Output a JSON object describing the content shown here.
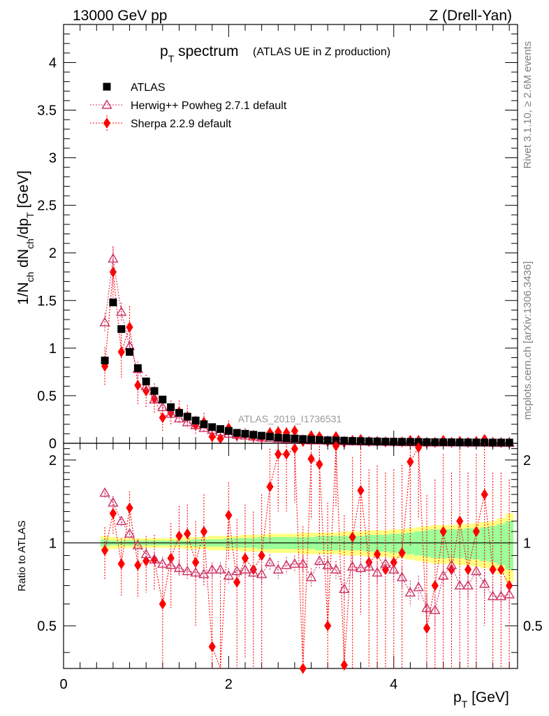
{
  "header": {
    "left": "13000 GeV pp",
    "right": "Z (Drell-Yan)"
  },
  "side": {
    "rivet": "Rivet 3.1.10, ≥ 2.6M events",
    "mcplots": "mcplots.cern.ch [arXiv:1306.3436]"
  },
  "colors": {
    "atlas": "#000000",
    "herwig": "#cc3366",
    "sherpa": "#ff0000",
    "band_stat": "#99ff99",
    "band_total": "#ffff80"
  },
  "chart_data": [
    {
      "type": "scatter",
      "panel": "main",
      "title_main": "p",
      "title_sub": "T",
      "title_rest": " spectrum",
      "subtitle": "(ATLAS UE in Z production)",
      "watermark": "ATLAS_2019_I1736531",
      "ylabel": "1/N_ch dN_ch/dp_T [GeV]",
      "ylim": [
        0,
        4.4
      ],
      "yticks": [
        "0",
        "0.5",
        "1",
        "1.5",
        "2",
        "2.5",
        "3",
        "3.5",
        "4"
      ],
      "ytick_values": [
        0,
        0.5,
        1,
        1.5,
        2,
        2.5,
        3,
        3.5,
        4
      ],
      "xlim": [
        0,
        5.5
      ],
      "legend": {
        "position": "top-left",
        "entries": [
          "ATLAS",
          "Herwig++ Powheg 2.7.1 default",
          "Sherpa 2.2.9 default"
        ]
      },
      "x": [
        0.5,
        0.6,
        0.7,
        0.8,
        0.9,
        1.0,
        1.1,
        1.2,
        1.3,
        1.4,
        1.5,
        1.6,
        1.7,
        1.8,
        1.9,
        2.0,
        2.1,
        2.2,
        2.3,
        2.4,
        2.5,
        2.6,
        2.7,
        2.8,
        2.9,
        3.0,
        3.1,
        3.2,
        3.3,
        3.4,
        3.5,
        3.6,
        3.7,
        3.8,
        3.9,
        4.0,
        4.1,
        4.2,
        4.3,
        4.4,
        4.5,
        4.6,
        4.7,
        4.8,
        4.9,
        5.0,
        5.1,
        5.2,
        5.3,
        5.4
      ],
      "series": [
        {
          "name": "ATLAS",
          "values": [
            0.87,
            1.48,
            1.2,
            0.96,
            0.79,
            0.65,
            0.55,
            0.46,
            0.38,
            0.32,
            0.28,
            0.24,
            0.2,
            0.17,
            0.15,
            0.13,
            0.11,
            0.1,
            0.09,
            0.08,
            0.07,
            0.06,
            0.055,
            0.05,
            0.045,
            0.04,
            0.035,
            0.032,
            0.03,
            0.028,
            0.025,
            0.023,
            0.021,
            0.02,
            0.018,
            0.017,
            0.016,
            0.015,
            0.014,
            0.013,
            0.012,
            0.011,
            0.011,
            0.01,
            0.01,
            0.009,
            0.009,
            0.008,
            0.008,
            0.008
          ]
        },
        {
          "name": "Herwig++ Powheg 2.7.1 default",
          "values": [
            1.27,
            1.94,
            1.38,
            1.02,
            0.78,
            0.6,
            0.46,
            0.38,
            0.31,
            0.26,
            0.22,
            0.19,
            0.16,
            0.14,
            0.12,
            0.1,
            0.09,
            0.08,
            0.07,
            0.06,
            0.055,
            0.05,
            0.045,
            0.04,
            0.037,
            0.03,
            0.03,
            0.027,
            0.025,
            0.022,
            0.02,
            0.019,
            0.017,
            0.016,
            0.015,
            0.014,
            0.012,
            0.011,
            0.01,
            0.008,
            0.008,
            0.009,
            0.009,
            0.008,
            0.007,
            0.007,
            0.007,
            0.006,
            0.005,
            0.005
          ],
          "errors": [
            0.1,
            0.12,
            0.1,
            0.09,
            0.08,
            0.07,
            0.06,
            0.05,
            0.05,
            0.04,
            0.04,
            0.04,
            0.04,
            0.03,
            0.03,
            0.03,
            0.03,
            0.03,
            0.03,
            0.03,
            0.03,
            0.03,
            0.03,
            0.03,
            0.03,
            0.03,
            0.03,
            0.03,
            0.03,
            0.03,
            0.03,
            0.03,
            0.03,
            0.02,
            0.02,
            0.02,
            0.02,
            0.02,
            0.02,
            0.02,
            0.02,
            0.02,
            0.02,
            0.02,
            0.02,
            0.02,
            0.02,
            0.02,
            0.02,
            0.02
          ]
        },
        {
          "name": "Sherpa 2.2.9 default",
          "values": [
            0.81,
            1.8,
            0.96,
            1.22,
            0.61,
            0.55,
            0.47,
            0.27,
            0.32,
            0.33,
            0.28,
            0.19,
            0.22,
            0.07,
            0.05,
            0.16,
            0.08,
            0.09,
            0.07,
            0.06,
            0.11,
            0.12,
            0.11,
            0.13,
            0.02,
            0.08,
            0.07,
            0.02,
            0.07,
            0.01,
            0.03,
            0.04,
            0.02,
            0.02,
            0.015,
            0.015,
            0.015,
            0.03,
            0.03,
            0.006,
            0.01,
            0.03,
            0.01,
            0.02,
            0.01,
            0.02,
            0.04,
            0.008,
            0.008,
            0.005
          ],
          "errors": [
            0.2,
            0.27,
            0.27,
            0.22,
            0.2,
            0.17,
            0.16,
            0.14,
            0.13,
            0.12,
            0.12,
            0.1,
            0.1,
            0.09,
            0.08,
            0.08,
            0.07,
            0.07,
            0.07,
            0.06,
            0.06,
            0.06,
            0.06,
            0.06,
            0.05,
            0.05,
            0.05,
            0.05,
            0.05,
            0.05,
            0.05,
            0.05,
            0.04,
            0.04,
            0.04,
            0.04,
            0.04,
            0.04,
            0.04,
            0.04,
            0.03,
            0.03,
            0.03,
            0.03,
            0.03,
            0.03,
            0.03,
            0.03,
            0.03,
            0.03
          ]
        }
      ]
    },
    {
      "type": "scatter",
      "panel": "ratio",
      "ylabel": "Ratio to ATLAS",
      "xlabel": "p_T [GeV]",
      "ylim": [
        0.35,
        2.3
      ],
      "yticks": [
        "0.5",
        "1",
        "2"
      ],
      "ytick_values": [
        0.5,
        1,
        2
      ],
      "xlim": [
        0,
        5.5
      ],
      "xticks": [
        "0",
        "2",
        "4"
      ],
      "xtick_values": [
        0,
        2,
        4
      ],
      "x": [
        0.5,
        0.6,
        0.7,
        0.8,
        0.9,
        1.0,
        1.1,
        1.2,
        1.3,
        1.4,
        1.5,
        1.6,
        1.7,
        1.8,
        1.9,
        2.0,
        2.1,
        2.2,
        2.3,
        2.4,
        2.5,
        2.6,
        2.7,
        2.8,
        2.9,
        3.0,
        3.1,
        3.2,
        3.3,
        3.4,
        3.5,
        3.6,
        3.7,
        3.8,
        3.9,
        4.0,
        4.1,
        4.2,
        4.3,
        4.4,
        4.5,
        4.6,
        4.7,
        4.8,
        4.9,
        5.0,
        5.1,
        5.2,
        5.3,
        5.4
      ],
      "band_stat_halfwidth": [
        0.03,
        0.02,
        0.02,
        0.02,
        0.02,
        0.02,
        0.02,
        0.02,
        0.02,
        0.02,
        0.02,
        0.03,
        0.03,
        0.03,
        0.03,
        0.04,
        0.04,
        0.04,
        0.04,
        0.05,
        0.05,
        0.05,
        0.05,
        0.05,
        0.05,
        0.05,
        0.06,
        0.06,
        0.06,
        0.06,
        0.06,
        0.06,
        0.07,
        0.07,
        0.07,
        0.08,
        0.08,
        0.09,
        0.1,
        0.11,
        0.12,
        0.12,
        0.12,
        0.12,
        0.13,
        0.13,
        0.14,
        0.15,
        0.17,
        0.2
      ],
      "band_total_halfwidth": [
        0.06,
        0.05,
        0.04,
        0.04,
        0.04,
        0.04,
        0.04,
        0.04,
        0.04,
        0.04,
        0.05,
        0.05,
        0.05,
        0.06,
        0.06,
        0.06,
        0.06,
        0.07,
        0.07,
        0.07,
        0.08,
        0.08,
        0.08,
        0.08,
        0.09,
        0.09,
        0.09,
        0.09,
        0.09,
        0.1,
        0.1,
        0.1,
        0.11,
        0.11,
        0.11,
        0.12,
        0.12,
        0.13,
        0.14,
        0.15,
        0.16,
        0.16,
        0.16,
        0.17,
        0.17,
        0.18,
        0.19,
        0.2,
        0.23,
        0.28
      ],
      "series": [
        {
          "name": "Herwig++ Powheg 2.7.1 default",
          "values": [
            1.52,
            1.4,
            1.2,
            1.08,
            0.98,
            0.91,
            0.87,
            0.84,
            0.83,
            0.81,
            0.79,
            0.78,
            0.77,
            0.8,
            0.8,
            0.76,
            0.79,
            0.8,
            0.78,
            0.77,
            0.85,
            0.8,
            0.83,
            0.84,
            0.84,
            0.75,
            0.86,
            0.83,
            0.8,
            0.68,
            0.82,
            0.81,
            0.82,
            0.78,
            0.84,
            0.8,
            0.75,
            0.66,
            0.69,
            0.58,
            0.57,
            0.76,
            0.83,
            0.7,
            0.7,
            0.79,
            0.71,
            0.64,
            0.64,
            0.65
          ],
          "errors": [
            0.06,
            0.05,
            0.05,
            0.05,
            0.05,
            0.05,
            0.05,
            0.05,
            0.05,
            0.05,
            0.05,
            0.05,
            0.05,
            0.05,
            0.05,
            0.05,
            0.05,
            0.05,
            0.05,
            0.06,
            0.06,
            0.06,
            0.06,
            0.06,
            0.06,
            0.06,
            0.06,
            0.06,
            0.06,
            0.06,
            0.07,
            0.07,
            0.07,
            0.07,
            0.07,
            0.07,
            0.07,
            0.07,
            0.07,
            0.07,
            0.07,
            0.07,
            0.07,
            0.07,
            0.07,
            0.07,
            0.07,
            0.07,
            0.07,
            0.07
          ]
        },
        {
          "name": "Sherpa 2.2.9 default",
          "values": [
            0.94,
            1.28,
            0.84,
            1.34,
            0.83,
            0.86,
            0.87,
            0.6,
            0.88,
            1.06,
            1.08,
            0.85,
            1.1,
            0.42,
            0.33,
            1.26,
            0.72,
            0.88,
            0.8,
            0.9,
            1.6,
            2.1,
            2.1,
            2.2,
            0.35,
            2.02,
            1.93,
            0.5,
            2.25,
            0.36,
            1.05,
            1.55,
            0.85,
            0.91,
            0.8,
            0.85,
            0.92,
            1.97,
            2.22,
            0.49,
            0.7,
            1.1,
            0.8,
            1.2,
            0.8,
            1.1,
            1.5,
            0.8,
            0.8,
            0.7
          ],
          "errors": [
            0.2,
            0.2,
            0.2,
            0.2,
            0.2,
            0.2,
            0.2,
            0.25,
            0.3,
            0.3,
            0.3,
            0.35,
            0.4,
            0.4,
            0.4,
            0.4,
            0.5,
            0.5,
            0.5,
            0.6,
            0.6,
            0.8,
            0.8,
            0.8,
            0.8,
            0.8,
            0.9,
            0.9,
            0.9,
            0.9,
            1.0,
            1.0,
            1.0,
            1.0,
            1.0,
            1.0,
            1.0,
            1.0,
            1.0,
            1.0,
            1.0,
            1.0,
            1.0,
            1.0,
            1.0,
            1.0,
            1.0,
            1.0,
            1.0,
            1.0
          ]
        }
      ]
    }
  ]
}
